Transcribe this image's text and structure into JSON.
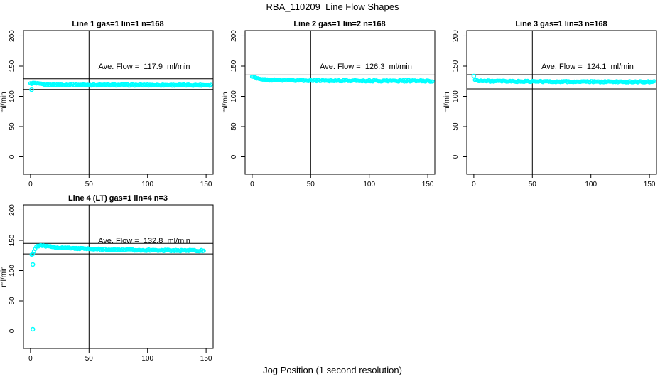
{
  "page": {
    "title": "RBA_110209  Line Flow Shapes",
    "xlabel": "Jog Position (1 second resolution)"
  },
  "colors": {
    "points": "#00ffff",
    "lines": "#000000",
    "background": "#ffffff",
    "text": "#000000"
  },
  "axes": {
    "xlim": [
      -6,
      156
    ],
    "ylim": [
      -28.8,
      208.8
    ],
    "xticks": [
      0,
      50,
      100,
      150
    ],
    "yticks": [
      0,
      50,
      100,
      150,
      200
    ],
    "ylabel": "ml/min",
    "vline_x": 50,
    "grid": false
  },
  "chart_data": [
    {
      "type": "scatter",
      "title": "Line 1 gas=1 lin=1 n=168",
      "annotation": "Ave. Flow =  117.9  ml/min",
      "ave_flow": 117.9,
      "n": 168,
      "hline_top": 129.1,
      "hline_bottom": 111.5,
      "x_start": 0,
      "x_end": 154,
      "jitter": 1.0,
      "profile_keypoints": [
        [
          0,
          121.0
        ],
        [
          3,
          122.0
        ],
        [
          6,
          120.8
        ],
        [
          12,
          119.6
        ],
        [
          30,
          119.2
        ],
        [
          70,
          118.8
        ],
        [
          110,
          118.7
        ],
        [
          154,
          118.6
        ]
      ],
      "outliers": [
        [
          1,
          111.0
        ]
      ]
    },
    {
      "type": "scatter",
      "title": "Line 2 gas=1 lin=2 n=168",
      "annotation": "Ave. Flow =  126.3  ml/min",
      "ave_flow": 126.3,
      "n": 168,
      "hline_top": 135.5,
      "hline_bottom": 118.8,
      "x_start": 0,
      "x_end": 154,
      "jitter": 1.1,
      "profile_keypoints": [
        [
          0,
          133.5
        ],
        [
          2,
          131.5
        ],
        [
          4,
          129.5
        ],
        [
          8,
          127.8
        ],
        [
          20,
          126.8
        ],
        [
          60,
          126.2
        ],
        [
          100,
          125.8
        ],
        [
          154,
          125.5
        ]
      ],
      "outliers": []
    },
    {
      "type": "scatter",
      "title": "Line 3 gas=1 lin=3 n=168",
      "annotation": "Ave. Flow =  124.1  ml/min",
      "ave_flow": 124.1,
      "n": 168,
      "hline_top": 135.9,
      "hline_bottom": 112.3,
      "x_start": 1,
      "x_end": 154,
      "jitter": 1.0,
      "profile_keypoints": [
        [
          1,
          127.5
        ],
        [
          3,
          126.3
        ],
        [
          8,
          125.5
        ],
        [
          20,
          125.0
        ],
        [
          60,
          124.5
        ],
        [
          100,
          124.2
        ],
        [
          154,
          124.0
        ]
      ],
      "outliers": [
        [
          0,
          133.5
        ]
      ]
    },
    {
      "type": "scatter",
      "title": "Line 4 (LT) gas=1 lin=4 n=3",
      "annotation": "Ave. Flow =  132.8  ml/min",
      "ave_flow": 132.8,
      "n": 3,
      "hline_top": 145.0,
      "hline_bottom": 127.5,
      "x_start": 1,
      "x_end": 148,
      "jitter": 1.1,
      "profile_keypoints": [
        [
          1,
          126.5
        ],
        [
          2,
          128.0
        ],
        [
          3,
          132.0
        ],
        [
          4,
          136.0
        ],
        [
          5,
          139.0
        ],
        [
          7,
          141.0
        ],
        [
          10,
          141.0
        ],
        [
          15,
          139.8
        ],
        [
          25,
          138.0
        ],
        [
          40,
          136.5
        ],
        [
          60,
          135.0
        ],
        [
          90,
          134.0
        ],
        [
          120,
          133.3
        ],
        [
          148,
          133.0
        ]
      ],
      "outliers": [
        [
          2,
          110.0
        ],
        [
          2,
          3.0
        ]
      ]
    }
  ]
}
